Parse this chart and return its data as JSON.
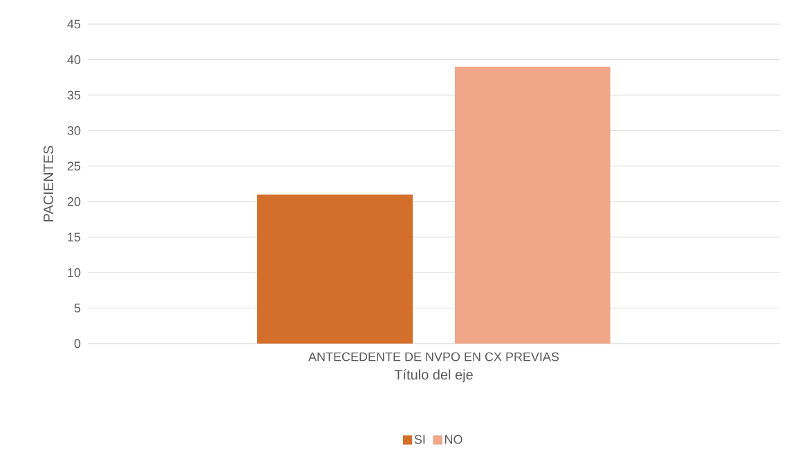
{
  "chart_data": {
    "type": "bar",
    "xlabel": "Título del eje",
    "ylabel": "PACIENTES",
    "categories": [
      "ANTECEDENTE DE NVPO EN CX PREVIAS"
    ],
    "series": [
      {
        "name": "SI",
        "color": "#d36f2b",
        "values": [
          21
        ]
      },
      {
        "name": "NO",
        "color": "#f0a688",
        "values": [
          39
        ]
      }
    ],
    "ylim": [
      0,
      45
    ],
    "yticks": [
      0,
      5,
      10,
      15,
      20,
      25,
      30,
      35,
      40,
      45
    ],
    "grid": "y",
    "legend": "bottom"
  }
}
